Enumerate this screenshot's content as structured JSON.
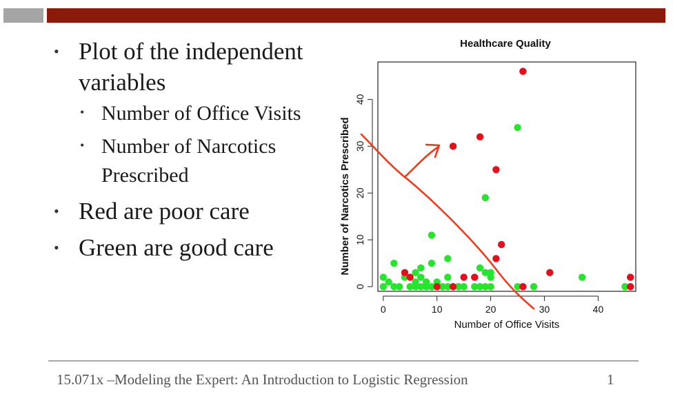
{
  "slide": {
    "bullets": {
      "b1": "Plot of the independent variables",
      "b1a": "Number of Office Visits",
      "b1b": "Number of Narcotics Prescribed",
      "b2": "Red are poor care",
      "b3": "Green are good care"
    },
    "footer": "15.071x –Modeling the Expert: An Introduction to Logistic Regression",
    "page_number": "1"
  },
  "colors": {
    "header_bar": "#8b1a0a",
    "header_block": "#a5a5a5",
    "poor_care": "#e3101b",
    "good_care": "#27e52d",
    "annotation": "#f03a1a"
  },
  "chart_data": {
    "type": "scatter",
    "title": "Healthcare Quality",
    "xlabel": "Number of Office Visits",
    "ylabel": "Number of Narcotics Prescribed",
    "xlim": [
      -1,
      47
    ],
    "ylim": [
      -1,
      48
    ],
    "xticks": [
      0,
      10,
      20,
      30,
      40
    ],
    "yticks": [
      0,
      10,
      20,
      30,
      40
    ],
    "grid": false,
    "series": [
      {
        "color": "#e3101b",
        "points": [
          [
            26,
            46
          ],
          [
            18,
            32
          ],
          [
            13,
            30
          ],
          [
            21,
            25
          ],
          [
            22,
            9
          ],
          [
            21,
            6
          ],
          [
            31,
            3
          ],
          [
            4,
            3
          ],
          [
            5,
            2
          ],
          [
            15,
            2
          ],
          [
            17,
            2
          ],
          [
            46,
            2
          ],
          [
            10,
            0
          ],
          [
            13,
            0
          ],
          [
            26,
            0
          ],
          [
            46,
            0
          ]
        ]
      },
      {
        "color": "#27e52d",
        "points": [
          [
            25,
            34
          ],
          [
            19,
            19
          ],
          [
            9,
            11
          ],
          [
            12,
            6
          ],
          [
            2,
            5
          ],
          [
            9,
            5
          ],
          [
            18,
            4
          ],
          [
            7,
            4
          ],
          [
            6,
            3
          ],
          [
            19,
            3
          ],
          [
            20,
            3
          ],
          [
            0,
            2
          ],
          [
            4,
            2
          ],
          [
            7,
            2
          ],
          [
            12,
            2
          ],
          [
            20,
            2
          ],
          [
            37,
            2
          ],
          [
            0,
            0
          ],
          [
            1,
            1
          ],
          [
            2,
            0
          ],
          [
            3,
            0
          ],
          [
            5,
            0
          ],
          [
            6,
            0
          ],
          [
            6,
            1
          ],
          [
            7,
            0
          ],
          [
            8,
            0
          ],
          [
            8,
            1
          ],
          [
            9,
            0
          ],
          [
            10,
            1
          ],
          [
            11,
            0
          ],
          [
            12,
            0
          ],
          [
            14,
            0
          ],
          [
            15,
            0
          ],
          [
            17,
            0
          ],
          [
            18,
            0
          ],
          [
            19,
            0
          ],
          [
            20,
            0
          ],
          [
            25,
            0
          ],
          [
            28,
            0
          ],
          [
            45,
            0
          ]
        ]
      }
    ]
  }
}
